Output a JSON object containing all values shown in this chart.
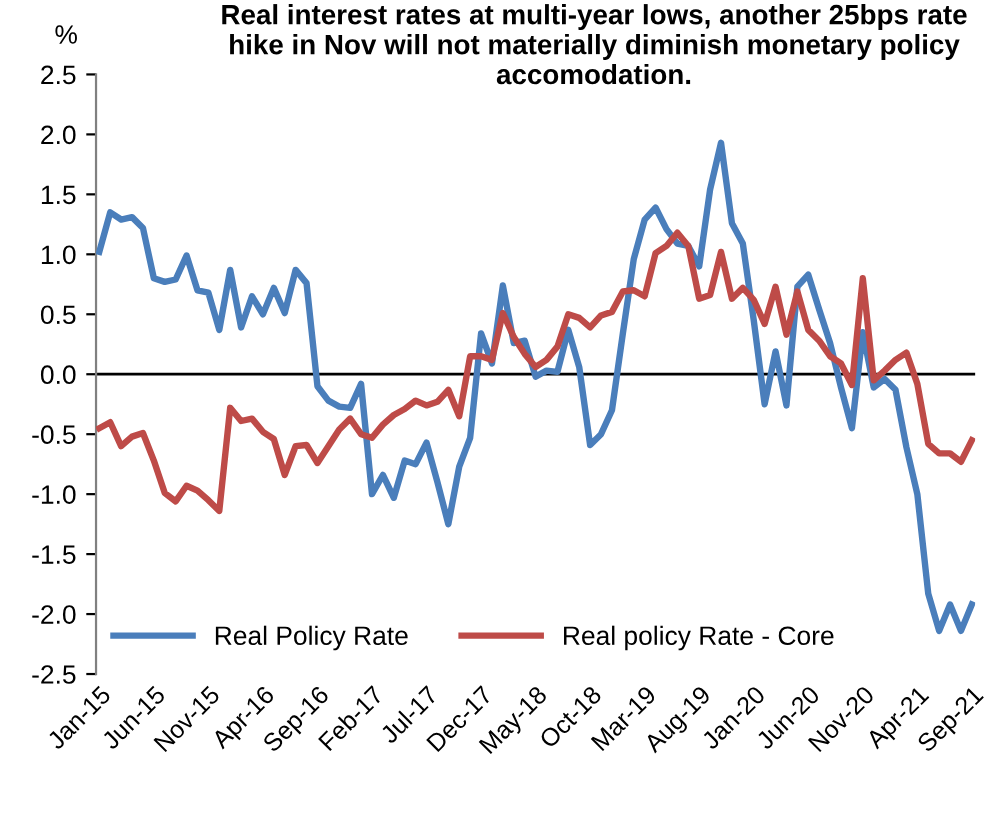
{
  "chart_data": {
    "type": "line",
    "title": "Real interest rates at multi-year lows, another 25bps rate hike in Nov will not materially diminish monetary policy accomodation.",
    "ylabel": "%",
    "categories": [
      "Jan-15",
      null,
      null,
      null,
      null,
      "Jun-15",
      null,
      null,
      null,
      null,
      "Nov-15",
      null,
      null,
      null,
      null,
      "Apr-16",
      null,
      null,
      null,
      null,
      "Sep-16",
      null,
      null,
      null,
      null,
      "Feb-17",
      null,
      null,
      null,
      null,
      "Jul-17",
      null,
      null,
      null,
      null,
      "Dec-17",
      null,
      null,
      null,
      null,
      "May-18",
      null,
      null,
      null,
      null,
      "Oct-18",
      null,
      null,
      null,
      null,
      "Mar-19",
      null,
      null,
      null,
      null,
      "Aug-19",
      null,
      null,
      null,
      null,
      "Jan-20",
      null,
      null,
      null,
      null,
      "Jun-20",
      null,
      null,
      null,
      null,
      "Nov-20",
      null,
      null,
      null,
      null,
      "Apr-21",
      null,
      null,
      null,
      null,
      "Sep-21"
    ],
    "series": [
      {
        "name": "Real Policy Rate",
        "color": "#4a7ebb",
        "values": [
          1.02,
          1.35,
          1.29,
          1.31,
          1.22,
          0.8,
          0.77,
          0.79,
          0.99,
          0.7,
          0.68,
          0.37,
          0.87,
          0.39,
          0.65,
          0.5,
          0.72,
          0.51,
          0.87,
          0.76,
          -0.1,
          -0.22,
          -0.27,
          -0.28,
          -0.08,
          -1.0,
          -0.84,
          -1.03,
          -0.72,
          -0.75,
          -0.57,
          -0.9,
          -1.25,
          -0.77,
          -0.53,
          0.34,
          0.09,
          0.74,
          0.26,
          0.28,
          -0.02,
          0.03,
          0.02,
          0.37,
          0.06,
          -0.59,
          -0.5,
          -0.3,
          0.34,
          0.96,
          1.29,
          1.39,
          1.21,
          1.09,
          1.07,
          0.9,
          1.54,
          1.93,
          1.26,
          1.09,
          0.45,
          -0.25,
          0.19,
          -0.26,
          0.73,
          0.83,
          0.54,
          0.26,
          -0.11,
          -0.45,
          0.35,
          -0.11,
          -0.04,
          -0.13,
          -0.61,
          -1.0,
          -1.83,
          -2.14,
          -1.92,
          -2.14,
          -1.92
        ]
      },
      {
        "name": "Real policy Rate - Core",
        "color": "#be4b48",
        "values": [
          -0.45,
          -0.4,
          -0.6,
          -0.52,
          -0.49,
          -0.72,
          -0.99,
          -1.06,
          -0.93,
          -0.97,
          -1.05,
          -1.14,
          -0.28,
          -0.39,
          -0.37,
          -0.48,
          -0.54,
          -0.84,
          -0.6,
          -0.59,
          -0.74,
          -0.6,
          -0.46,
          -0.37,
          -0.5,
          -0.53,
          -0.42,
          -0.34,
          -0.29,
          -0.22,
          -0.26,
          -0.23,
          -0.13,
          -0.35,
          0.15,
          0.15,
          0.12,
          0.51,
          0.31,
          0.17,
          0.06,
          0.12,
          0.23,
          0.5,
          0.47,
          0.39,
          0.49,
          0.52,
          0.69,
          0.7,
          0.65,
          1.01,
          1.07,
          1.18,
          1.07,
          0.63,
          0.66,
          1.02,
          0.63,
          0.72,
          0.62,
          0.42,
          0.73,
          0.33,
          0.69,
          0.37,
          0.28,
          0.15,
          0.09,
          -0.09,
          0.8,
          -0.05,
          0.03,
          0.12,
          0.18,
          -0.08,
          -0.58,
          -0.66,
          -0.66,
          -0.73,
          -0.55
        ]
      }
    ],
    "ylim": [
      -2.5,
      2.5
    ],
    "yticks": [
      -2.5,
      {
        "value": -2,
        "label": "-2.0"
      },
      -1.5,
      {
        "value": -1,
        "label": "-1.0"
      },
      -0.5,
      {
        "value": 0,
        "label": "0.0"
      },
      0.5,
      {
        "value": 1,
        "label": "1.0"
      },
      1.5,
      {
        "value": 2,
        "label": "2.0"
      },
      2.5
    ],
    "ref_lines": [
      {
        "axis": "y",
        "value": 0,
        "color": "#000000"
      }
    ],
    "legend": "bottom",
    "grid": false
  }
}
